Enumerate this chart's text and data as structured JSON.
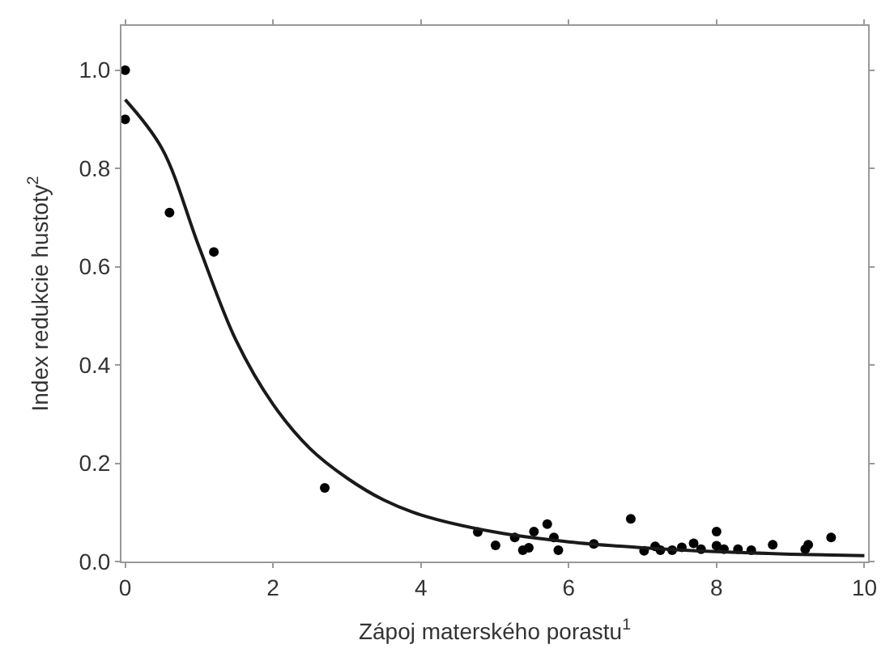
{
  "chart_data": {
    "type": "scatter",
    "xlabel": "Zápoj materského porastu$^{1}$",
    "ylabel": "Index redukcie hustoty$^{2}$",
    "xlim": [
      -0.05,
      10.05
    ],
    "ylim": [
      0,
      1.09
    ],
    "xticks": [
      0,
      2,
      4,
      6,
      8,
      10
    ],
    "yticks": [
      {
        "value": 0,
        "label": "0.0"
      },
      0.2,
      0.4,
      0.6,
      0.8,
      {
        "value": 1,
        "label": "1.0"
      }
    ],
    "series": [
      {
        "marker": "circle",
        "color": "#000000",
        "x": [
          0,
          0,
          0.6,
          1.2,
          2.7,
          4.77,
          5.01,
          5.27,
          5.38,
          5.46,
          5.53,
          5.71,
          5.8,
          5.86,
          6.34,
          6.84,
          7.02,
          7.17,
          7.24,
          7.4,
          7.53,
          7.69,
          7.79,
          8.0,
          8.0,
          8.1,
          8.29,
          8.47,
          8.76,
          9.2,
          9.24,
          9.55
        ],
        "values": [
          1.0,
          0.9,
          0.71,
          0.63,
          0.15,
          0.06,
          0.033,
          0.049,
          0.023,
          0.028,
          0.061,
          0.076,
          0.049,
          0.023,
          0.036,
          0.087,
          0.022,
          0.031,
          0.023,
          0.023,
          0.029,
          0.037,
          0.025,
          0.061,
          0.032,
          0.025,
          0.025,
          0.023,
          0.034,
          0.025,
          0.034,
          0.049
        ]
      },
      {
        "type": "line",
        "marker": "none",
        "line_style": "solid",
        "color": "#1a1a1a",
        "x": [
          0,
          0.5,
          1,
          1.5,
          2,
          2.5,
          3,
          3.5,
          4,
          5,
          6,
          7,
          8,
          9,
          10
        ],
        "values": [
          0.94,
          0.84,
          0.64,
          0.45,
          0.32,
          0.23,
          0.17,
          0.125,
          0.095,
          0.06,
          0.04,
          0.028,
          0.02,
          0.015,
          0.012
        ]
      }
    ]
  }
}
